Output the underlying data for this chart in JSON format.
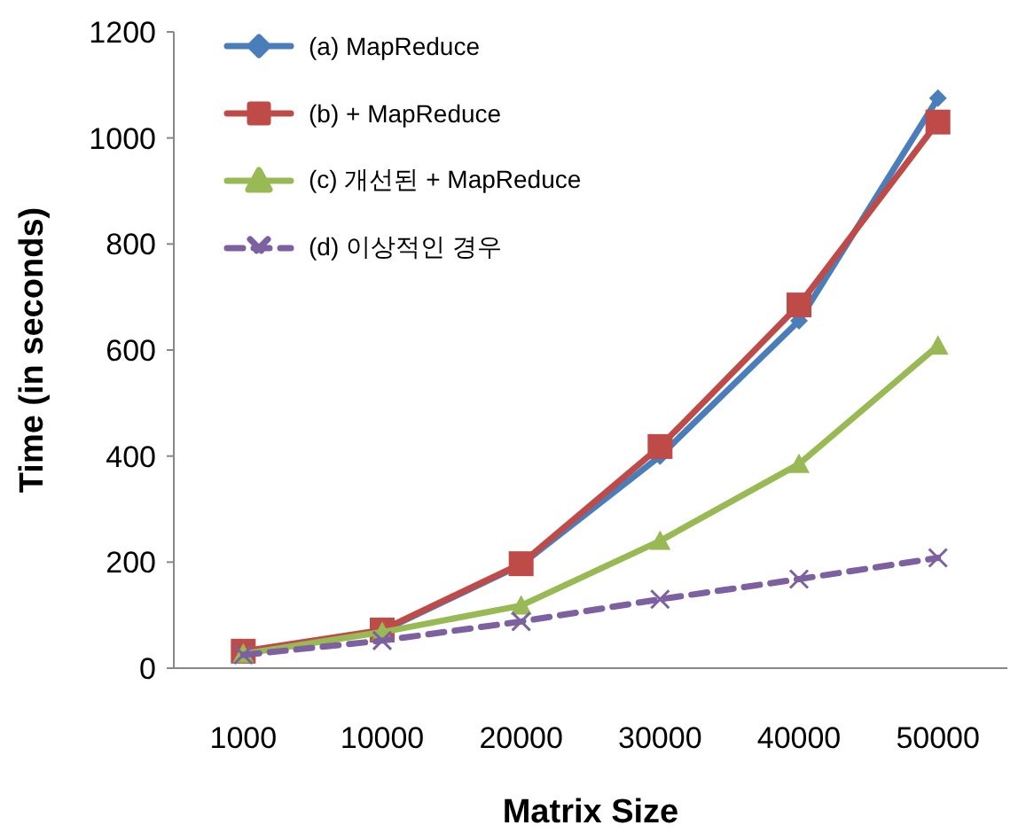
{
  "chart_data": {
    "type": "line",
    "xlabel": "Matrix Size",
    "ylabel": "Time (in seconds)",
    "categories": [
      "1000",
      "10000",
      "20000",
      "30000",
      "40000",
      "50000"
    ],
    "ylim": [
      0,
      1200
    ],
    "yticks": [
      0,
      200,
      400,
      600,
      800,
      1000,
      1200
    ],
    "grid": false,
    "legend": "top left",
    "series": [
      {
        "name": "(a) MapReduce",
        "color": "#4a7ebb",
        "marker": "diamond",
        "line_style": "solid",
        "values": [
          30,
          70,
          195,
          400,
          655,
          1075
        ]
      },
      {
        "name": "(b) + MapReduce",
        "color": "#be4b48",
        "marker": "square",
        "line_style": "solid",
        "values": [
          32,
          72,
          197,
          418,
          685,
          1030
        ]
      },
      {
        "name": "(c) 개선된 + MapReduce",
        "color": "#98b954",
        "marker": "triangle",
        "line_style": "solid",
        "values": [
          27,
          68,
          118,
          240,
          385,
          608
        ]
      },
      {
        "name": "(d) 이상적인 경우",
        "color": "#7d60a0",
        "marker": "cross",
        "line_style": "dashed",
        "values": [
          25,
          52,
          88,
          130,
          168,
          208
        ]
      }
    ]
  }
}
